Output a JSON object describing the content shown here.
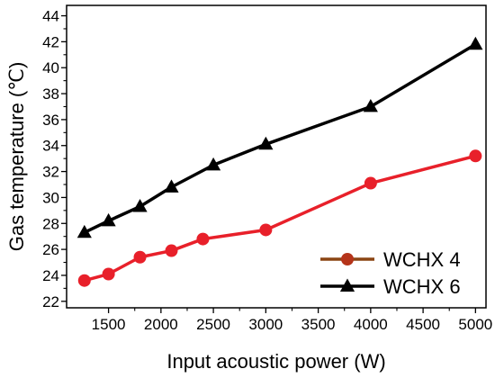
{
  "chart_data": {
    "type": "line",
    "xlabel": "Input acoustic power (W)",
    "ylabel": "Gas temperature (℃)",
    "xlim": [
      1100,
      5100
    ],
    "ylim": [
      21.5,
      44.8
    ],
    "x_ticks": [
      1500,
      2000,
      2500,
      3000,
      3500,
      4000,
      4500,
      5000
    ],
    "y_ticks": [
      22,
      24,
      26,
      28,
      30,
      32,
      34,
      36,
      38,
      40,
      42,
      44
    ],
    "grid": false,
    "legend_position": "bottom-right",
    "series": [
      {
        "name": "WCHX 4",
        "marker": "circle",
        "line_color": "#e8202a",
        "marker_color": "#e8202a",
        "legend_line_color": "#8b4513",
        "legend_marker_color": "#b5341a",
        "x": [
          1270,
          1500,
          1800,
          2100,
          2400,
          3000,
          4000,
          5000
        ],
        "y": [
          23.6,
          24.1,
          25.4,
          25.9,
          26.8,
          27.5,
          31.1,
          33.2
        ]
      },
      {
        "name": "WCHX 6",
        "marker": "triangle",
        "line_color": "#000000",
        "marker_color": "#000000",
        "legend_line_color": "#000000",
        "legend_marker_color": "#000000",
        "x": [
          1270,
          1500,
          1800,
          2100,
          2500,
          3000,
          4000,
          5000
        ],
        "y": [
          27.3,
          28.2,
          29.3,
          30.8,
          32.5,
          34.1,
          37.0,
          41.8
        ]
      }
    ]
  }
}
